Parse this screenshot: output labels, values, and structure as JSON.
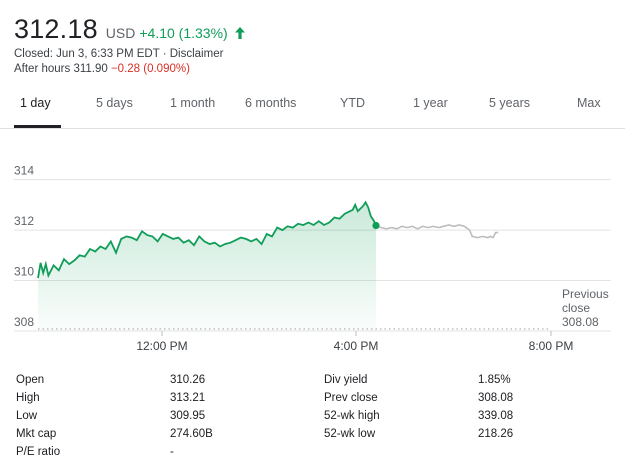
{
  "quote": {
    "price": "312.18",
    "currency": "USD",
    "change": "+4.10 (1.33%)",
    "closed_text": "Closed: Jun 3, 6:33 PM EDT · Disclaimer",
    "after_hours_label": "After hours 311.90",
    "after_hours_change": "−0.28 (0.090%)",
    "up_color": "#0f9d58",
    "down_color": "#d93025"
  },
  "tabs": [
    "1 day",
    "5 days",
    "1 month",
    "6 months",
    "YTD",
    "1 year",
    "5 years",
    "Max"
  ],
  "active_tab": "1 day",
  "chart_data": {
    "type": "line",
    "y_ticks": [
      "314",
      "312",
      "310",
      "308"
    ],
    "x_ticks": [
      "12:00 PM",
      "4:00 PM",
      "8:00 PM"
    ],
    "ylim": [
      308,
      314.5
    ],
    "xlim": [
      0,
      10.5
    ],
    "prev_close": 308.08,
    "prev_close_label": [
      "Previous",
      "close",
      "308.08"
    ],
    "current_point": {
      "x": 6.5,
      "y": 312.18
    },
    "series": [
      {
        "session": "regular",
        "color": "#0f9d58",
        "points": [
          [
            0,
            310.1
          ],
          [
            0.05,
            310.7
          ],
          [
            0.1,
            310.3
          ],
          [
            0.15,
            310.65
          ],
          [
            0.2,
            310.2
          ],
          [
            0.3,
            310.6
          ],
          [
            0.4,
            310.4
          ],
          [
            0.5,
            310.85
          ],
          [
            0.6,
            310.65
          ],
          [
            0.7,
            310.8
          ],
          [
            0.8,
            311.0
          ],
          [
            0.9,
            310.95
          ],
          [
            1.0,
            311.25
          ],
          [
            1.1,
            311.15
          ],
          [
            1.2,
            311.35
          ],
          [
            1.3,
            311.25
          ],
          [
            1.4,
            311.55
          ],
          [
            1.5,
            311.1
          ],
          [
            1.6,
            311.65
          ],
          [
            1.7,
            311.75
          ],
          [
            1.8,
            311.7
          ],
          [
            1.9,
            311.6
          ],
          [
            2.0,
            311.95
          ],
          [
            2.1,
            311.8
          ],
          [
            2.2,
            311.75
          ],
          [
            2.3,
            311.55
          ],
          [
            2.4,
            311.85
          ],
          [
            2.5,
            311.75
          ],
          [
            2.6,
            311.65
          ],
          [
            2.7,
            311.7
          ],
          [
            2.8,
            311.5
          ],
          [
            2.9,
            311.6
          ],
          [
            3.0,
            311.4
          ],
          [
            3.1,
            311.75
          ],
          [
            3.2,
            311.55
          ],
          [
            3.3,
            311.45
          ],
          [
            3.4,
            311.5
          ],
          [
            3.5,
            311.35
          ],
          [
            3.6,
            311.45
          ],
          [
            3.7,
            311.5
          ],
          [
            3.8,
            311.6
          ],
          [
            3.9,
            311.7
          ],
          [
            4.0,
            311.65
          ],
          [
            4.1,
            311.55
          ],
          [
            4.2,
            311.65
          ],
          [
            4.3,
            311.45
          ],
          [
            4.4,
            311.85
          ],
          [
            4.5,
            311.75
          ],
          [
            4.6,
            312.1
          ],
          [
            4.7,
            312.0
          ],
          [
            4.8,
            312.15
          ],
          [
            4.9,
            312.1
          ],
          [
            5.0,
            312.25
          ],
          [
            5.1,
            312.2
          ],
          [
            5.2,
            312.3
          ],
          [
            5.3,
            312.2
          ],
          [
            5.4,
            312.35
          ],
          [
            5.5,
            312.2
          ],
          [
            5.6,
            312.3
          ],
          [
            5.7,
            312.5
          ],
          [
            5.8,
            312.45
          ],
          [
            5.9,
            312.65
          ],
          [
            6.0,
            312.75
          ],
          [
            6.05,
            312.8
          ],
          [
            6.1,
            313.0
          ],
          [
            6.15,
            312.75
          ],
          [
            6.25,
            312.95
          ],
          [
            6.3,
            313.1
          ],
          [
            6.35,
            312.9
          ],
          [
            6.4,
            312.55
          ],
          [
            6.45,
            312.4
          ],
          [
            6.5,
            312.18
          ]
        ]
      },
      {
        "session": "after_hours",
        "color": "#bdbdbd",
        "points": [
          [
            6.5,
            312.18
          ],
          [
            6.6,
            312.1
          ],
          [
            6.7,
            312.05
          ],
          [
            6.8,
            312.1
          ],
          [
            6.9,
            312.05
          ],
          [
            7.0,
            312.15
          ],
          [
            7.1,
            312.1
          ],
          [
            7.2,
            312.15
          ],
          [
            7.3,
            312.05
          ],
          [
            7.4,
            312.15
          ],
          [
            7.5,
            312.1
          ],
          [
            7.6,
            312.15
          ],
          [
            7.7,
            312.1
          ],
          [
            7.8,
            312.15
          ],
          [
            7.9,
            312.2
          ],
          [
            8.0,
            312.15
          ],
          [
            8.1,
            312.2
          ],
          [
            8.2,
            312.15
          ],
          [
            8.3,
            312.0
          ],
          [
            8.35,
            311.75
          ],
          [
            8.45,
            311.7
          ],
          [
            8.55,
            311.75
          ],
          [
            8.65,
            311.7
          ],
          [
            8.7,
            311.75
          ],
          [
            8.75,
            311.7
          ],
          [
            8.8,
            311.9
          ],
          [
            8.85,
            311.9
          ]
        ]
      }
    ]
  },
  "stats": {
    "rows": [
      [
        {
          "label": "Open",
          "value": "310.26"
        },
        {
          "label": "Div yield",
          "value": "1.85%"
        }
      ],
      [
        {
          "label": "High",
          "value": "313.21"
        },
        {
          "label": "Prev close",
          "value": "308.08"
        }
      ],
      [
        {
          "label": "Low",
          "value": "309.95"
        },
        {
          "label": "52-wk high",
          "value": "339.08"
        }
      ],
      [
        {
          "label": "Mkt cap",
          "value": "274.60B"
        },
        {
          "label": "52-wk low",
          "value": "218.26"
        }
      ],
      [
        {
          "label": "P/E ratio",
          "value": "-"
        }
      ]
    ]
  }
}
